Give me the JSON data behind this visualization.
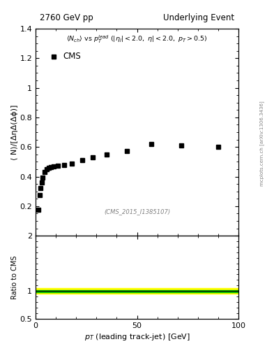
{
  "title_left": "2760 GeV pp",
  "title_right": "Underlying Event",
  "cms_label": "CMS",
  "watermark": "(CMS_2015_I1385107)",
  "ylabel_main": "⟨ N⟩/[ΔηΔ(Δϕ)]",
  "ylabel_ratio": "Ratio to CMS",
  "xlabel": "p_T (leading track-jet) [GeV]",
  "xlim": [
    0,
    100
  ],
  "ylim_main": [
    0,
    1.4
  ],
  "ylim_ratio": [
    0.5,
    2.0
  ],
  "yticks_main": [
    0.2,
    0.4,
    0.6,
    0.8,
    1.0,
    1.2,
    1.4
  ],
  "ytick_labels_main": [
    "0.2",
    "0.4",
    "0.6",
    "0.8",
    "1",
    "1.2",
    "1.4"
  ],
  "xticks": [
    0,
    50,
    100
  ],
  "xtick_labels": [
    "0",
    "50",
    "100"
  ],
  "yticks_ratio": [
    0.5,
    1.0,
    2.0
  ],
  "ytick_labels_ratio": [
    "0.5",
    "1",
    "2"
  ],
  "data_x": [
    1.5,
    2.0,
    2.5,
    3.0,
    3.5,
    4.5,
    5.5,
    6.5,
    7.5,
    9.0,
    11.0,
    14.0,
    18.0,
    23.0,
    28.0,
    35.0,
    45.0,
    57.0,
    72.0,
    90.0
  ],
  "data_y": [
    0.175,
    0.275,
    0.32,
    0.36,
    0.395,
    0.43,
    0.45,
    0.46,
    0.465,
    0.47,
    0.475,
    0.48,
    0.49,
    0.51,
    0.53,
    0.55,
    0.575,
    0.62,
    0.61,
    0.6
  ],
  "marker_color": "black",
  "marker_size": 4,
  "ratio_line_y": 1.0,
  "ratio_green_half": 0.02,
  "ratio_yellow_half": 0.05,
  "green_color": "#00BB00",
  "yellow_color": "#FFFF00",
  "ratio_line_color": "black",
  "background_color": "white"
}
